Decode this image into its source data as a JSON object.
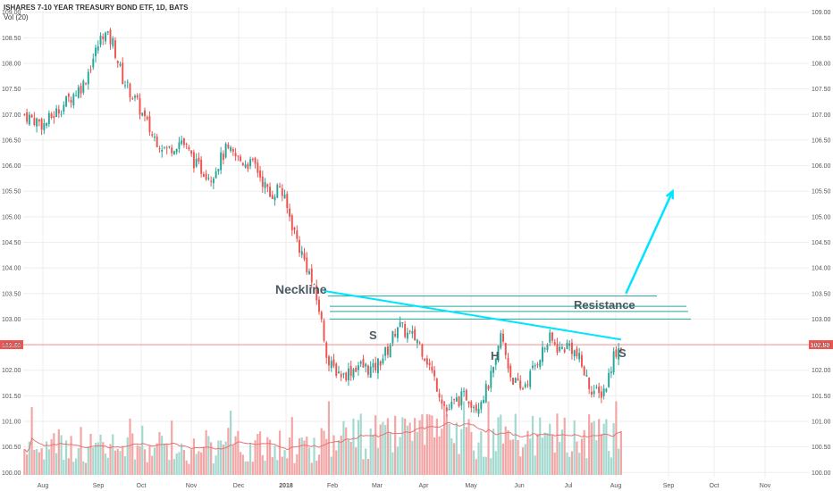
{
  "header": {
    "title": "ISHARES 7-10 YEAR TREASURY BOND ETF, 1D, BATS",
    "volume_label": "Vol (20)"
  },
  "colors": {
    "up": "#26a69a",
    "down": "#ef5350",
    "volume_up": "#a3d9cf",
    "volume_down": "#f4a6a6",
    "volume_ma": "#e57373",
    "neckline": "#00e5ff",
    "arrow": "#00e5ff",
    "resistance": "#26a69a",
    "price_line": "#ef5350",
    "grid": "#eeeeee",
    "annotation_text": "#4a5a63"
  },
  "chart_data": {
    "type": "candlestick",
    "ylim": [
      99.9,
      109.1
    ],
    "y_ticks": [
      "100.00",
      "100.50",
      "101.00",
      "101.50",
      "102.00",
      "102.50",
      "103.00",
      "103.50",
      "104.00",
      "104.50",
      "105.00",
      "105.50",
      "106.00",
      "106.50",
      "107.00",
      "107.50",
      "108.00",
      "108.50",
      "109.00"
    ],
    "x_ticks": [
      "Aug",
      "Sep",
      "Oct",
      "Nov",
      "Dec",
      "2018",
      "Feb",
      "Mar",
      "Apr",
      "May",
      "Jun",
      "Jul",
      "Aug",
      "Sep",
      "Oct",
      "Nov"
    ],
    "last_price": "102.50",
    "price_path": [
      {
        "i": 0,
        "p": 107.0
      },
      {
        "i": 8,
        "p": 106.8
      },
      {
        "i": 16,
        "p": 107.2
      },
      {
        "i": 24,
        "p": 107.6
      },
      {
        "i": 32,
        "p": 108.6
      },
      {
        "i": 36,
        "p": 108.4
      },
      {
        "i": 40,
        "p": 107.7
      },
      {
        "i": 46,
        "p": 107.2
      },
      {
        "i": 52,
        "p": 106.6
      },
      {
        "i": 58,
        "p": 106.3
      },
      {
        "i": 64,
        "p": 106.5
      },
      {
        "i": 70,
        "p": 106.0
      },
      {
        "i": 76,
        "p": 105.8
      },
      {
        "i": 82,
        "p": 106.3
      },
      {
        "i": 88,
        "p": 106.1
      },
      {
        "i": 94,
        "p": 106.0
      },
      {
        "i": 100,
        "p": 105.4
      },
      {
        "i": 104,
        "p": 105.6
      },
      {
        "i": 108,
        "p": 105.0
      },
      {
        "i": 112,
        "p": 104.4
      },
      {
        "i": 116,
        "p": 103.9
      },
      {
        "i": 120,
        "p": 103.2
      },
      {
        "i": 124,
        "p": 102.1
      },
      {
        "i": 130,
        "p": 101.9
      },
      {
        "i": 136,
        "p": 102.1
      },
      {
        "i": 142,
        "p": 102.0
      },
      {
        "i": 148,
        "p": 102.4
      },
      {
        "i": 152,
        "p": 102.9
      },
      {
        "i": 156,
        "p": 102.7
      },
      {
        "i": 160,
        "p": 102.6
      },
      {
        "i": 164,
        "p": 102.2
      },
      {
        "i": 168,
        "p": 101.7
      },
      {
        "i": 172,
        "p": 101.2
      },
      {
        "i": 176,
        "p": 101.4
      },
      {
        "i": 180,
        "p": 101.5
      },
      {
        "i": 184,
        "p": 101.3
      },
      {
        "i": 188,
        "p": 101.6
      },
      {
        "i": 192,
        "p": 102.1
      },
      {
        "i": 194,
        "p": 102.7
      },
      {
        "i": 198,
        "p": 101.9
      },
      {
        "i": 202,
        "p": 101.6
      },
      {
        "i": 206,
        "p": 101.9
      },
      {
        "i": 210,
        "p": 102.3
      },
      {
        "i": 214,
        "p": 102.6
      },
      {
        "i": 218,
        "p": 102.4
      },
      {
        "i": 222,
        "p": 102.5
      },
      {
        "i": 226,
        "p": 102.2
      },
      {
        "i": 230,
        "p": 101.7
      },
      {
        "i": 234,
        "p": 101.5
      },
      {
        "i": 237,
        "p": 101.7
      },
      {
        "i": 240,
        "p": 102.3
      },
      {
        "i": 243,
        "p": 102.5
      }
    ],
    "annotations": {
      "neckline": "Neckline",
      "resistance": "Resistance",
      "left_shoulder": "S",
      "head": "H",
      "right_shoulder": "S"
    },
    "neckline": {
      "from": {
        "i": 122,
        "p": 103.55
      },
      "to": {
        "i": 243,
        "p": 102.6
      }
    },
    "resistance_levels": [
      103.45,
      103.25,
      103.15,
      103.0
    ],
    "projection_arrow": {
      "from": {
        "i": 245,
        "p": 103.5
      },
      "to": {
        "i": 264,
        "p": 105.5
      }
    }
  }
}
